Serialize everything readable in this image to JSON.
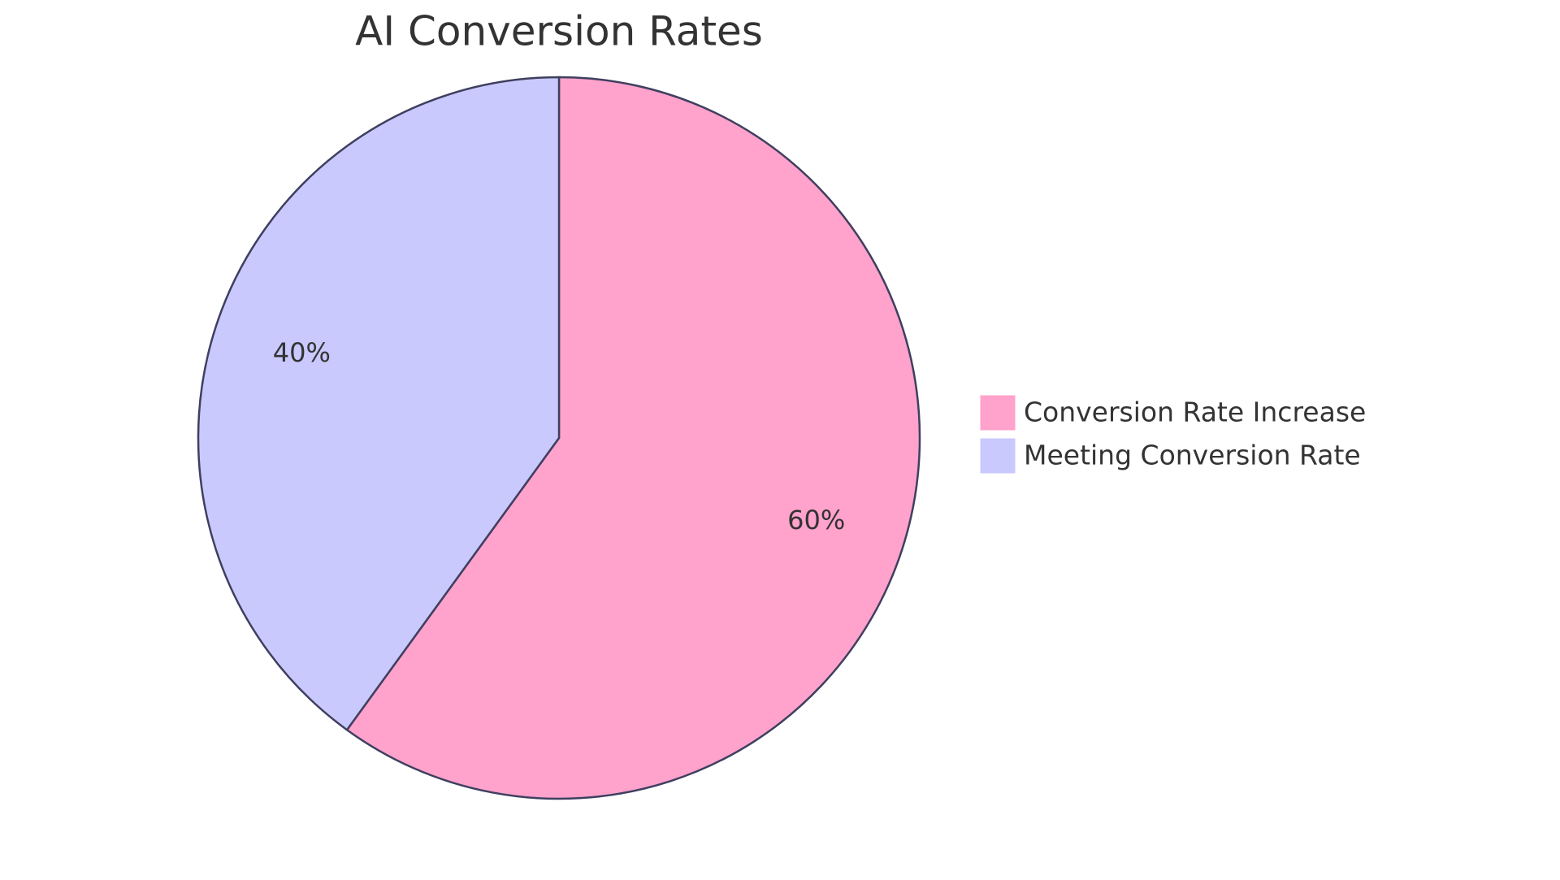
{
  "chart_data": {
    "type": "pie",
    "title": "AI Conversion Rates",
    "categories": [
      "Conversion Rate Increase",
      "Meeting Conversion Rate"
    ],
    "values": [
      60,
      40
    ],
    "value_labels": [
      "60%",
      "40%"
    ],
    "colors": [
      "#ffa2cc",
      "#c9c9fe"
    ],
    "legend": "right"
  }
}
